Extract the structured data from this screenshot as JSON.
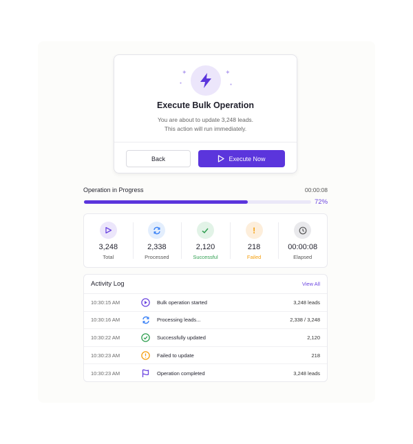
{
  "modal": {
    "title": "Execute Bulk Operation",
    "line1": "You are about to update 3,248 leads.",
    "line2": "This action will run immediately.",
    "back_label": "Back",
    "execute_label": "Execute Now"
  },
  "progress": {
    "title": "Operation in Progress",
    "elapsed": "00:00:08",
    "percent": 72,
    "percent_label": "72%",
    "accent": "#5b35dc"
  },
  "stats": [
    {
      "value": "3,248",
      "label": "Total",
      "icon": "play-icon",
      "color": "#6b45e0",
      "bg": "#ece6fb",
      "labelColor": "#555"
    },
    {
      "value": "2,338",
      "label": "Processed",
      "icon": "refresh-icon",
      "color": "#3b82f6",
      "bg": "#e3eefd",
      "labelColor": "#555"
    },
    {
      "value": "2,120",
      "label": "Successful",
      "icon": "check-icon",
      "color": "#2e9e4f",
      "bg": "#e2f3e7",
      "labelColor": "#2e9e4f"
    },
    {
      "value": "218",
      "label": "Failed",
      "icon": "exclamation-icon",
      "color": "#f59e0b",
      "bg": "#fdeedb",
      "labelColor": "#f59e0b"
    },
    {
      "value": "00:00:08",
      "label": "Elapsed",
      "icon": "clock-icon",
      "color": "#555",
      "bg": "#e9e9ec",
      "labelColor": "#555"
    }
  ],
  "log": {
    "title": "Activity Log",
    "view_all": "View All",
    "rows": [
      {
        "time": "10:30:15 AM",
        "icon": "play-circle-icon",
        "message": "Bulk operation started",
        "value": "3,248 leads"
      },
      {
        "time": "10:30:16 AM",
        "icon": "refresh-icon",
        "message": "Processing leads...",
        "value": "2,338 / 3,248"
      },
      {
        "time": "10:30:22 AM",
        "icon": "check-circle-icon",
        "message": "Successfully updated",
        "value": "2,120"
      },
      {
        "time": "10:30:23 AM",
        "icon": "alert-circle-icon",
        "message": "Failed to update",
        "value": "218"
      },
      {
        "time": "10:30:23 AM",
        "icon": "flag-icon",
        "message": "Operation completed",
        "value": "3,248 leads"
      }
    ]
  }
}
